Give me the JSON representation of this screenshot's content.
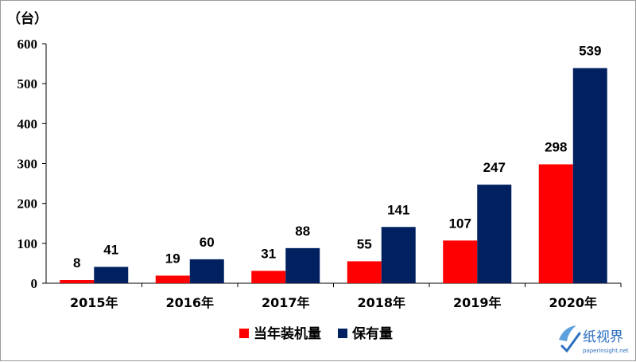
{
  "chart_data": {
    "type": "bar",
    "unit_label": "（台）",
    "categories": [
      "2015年",
      "2016年",
      "2017年",
      "2018年",
      "2019年",
      "2020年"
    ],
    "series": [
      {
        "name": "当年装机量",
        "color": "#ff0000",
        "values": [
          8,
          19,
          31,
          55,
          107,
          298
        ]
      },
      {
        "name": "保有量",
        "color": "#002060",
        "values": [
          41,
          60,
          88,
          141,
          247,
          539
        ]
      }
    ],
    "ylim": [
      0,
      600
    ],
    "yticks": [
      0,
      100,
      200,
      300,
      400,
      500,
      600
    ],
    "grid": false,
    "legend_position": "bottom-center"
  },
  "watermark": {
    "text": "纸视界",
    "url": "paperinsight.net",
    "color": "#2a6fbf"
  }
}
